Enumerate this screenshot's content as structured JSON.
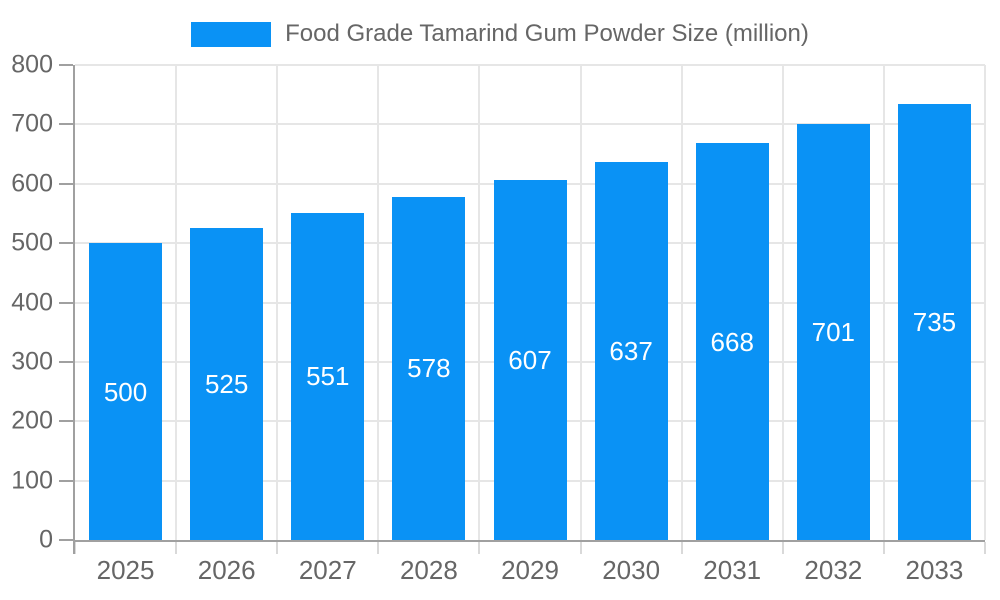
{
  "chart_data": {
    "type": "bar",
    "title": "Food Grade Tamarind Gum Powder Size (million)",
    "legend": {
      "label": "Food Grade Tamarind Gum Powder Size (million)",
      "position": "top-center"
    },
    "categories": [
      "2025",
      "2026",
      "2027",
      "2028",
      "2029",
      "2030",
      "2031",
      "2032",
      "2033"
    ],
    "values": [
      500,
      525,
      551,
      578,
      607,
      637,
      668,
      701,
      735
    ],
    "xlabel": "",
    "ylabel": "",
    "ylim": [
      0,
      800
    ],
    "yticks": [
      0,
      100,
      200,
      300,
      400,
      500,
      600,
      700,
      800
    ],
    "grid": true,
    "value_labels": "centered-inside-bars",
    "colors": {
      "bar": "#0a92f5",
      "value_label": "#ffffff",
      "tick_text": "#666666",
      "legend_text": "#666666",
      "axis_line": "#a0a0a0",
      "grid_line": "#e6e6e6",
      "x_boundary_tick": "#d9d9d9",
      "background": "#ffffff"
    }
  }
}
